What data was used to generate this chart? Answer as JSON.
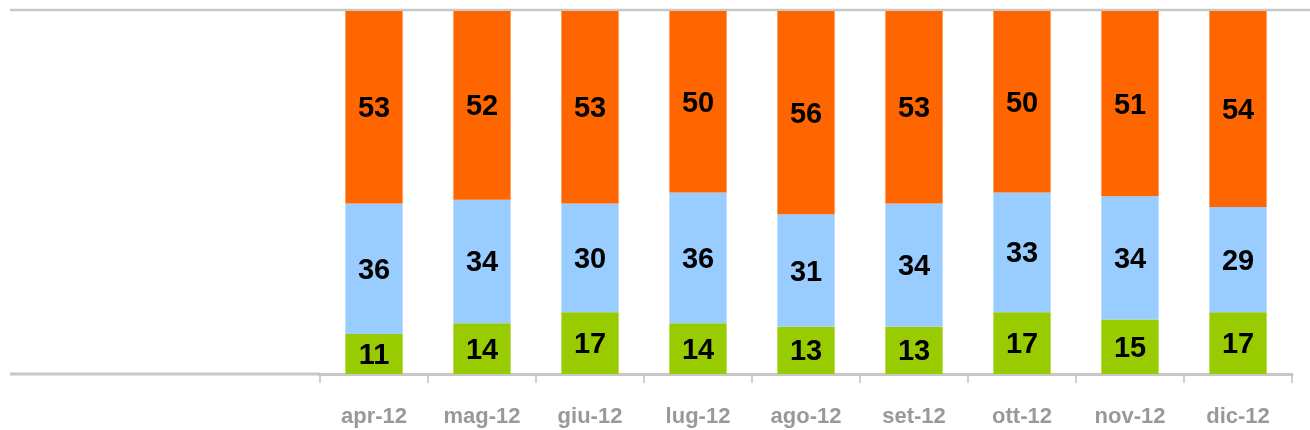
{
  "chart_data": {
    "type": "bar",
    "stacked": true,
    "categories": [
      "apr-12",
      "mag-12",
      "giu-12",
      "lug-12",
      "ago-12",
      "set-12",
      "ott-12",
      "nov-12",
      "dic-12"
    ],
    "series": [
      {
        "color": "#99cc00",
        "values": [
          11,
          14,
          17,
          14,
          13,
          13,
          17,
          15,
          17
        ]
      },
      {
        "color": "#99ccff",
        "values": [
          36,
          34,
          30,
          36,
          31,
          34,
          33,
          34,
          29
        ]
      },
      {
        "color": "#ff6600",
        "values": [
          53,
          52,
          53,
          50,
          56,
          53,
          50,
          51,
          54
        ]
      }
    ],
    "data_labels": true,
    "tick_labels": "x"
  }
}
